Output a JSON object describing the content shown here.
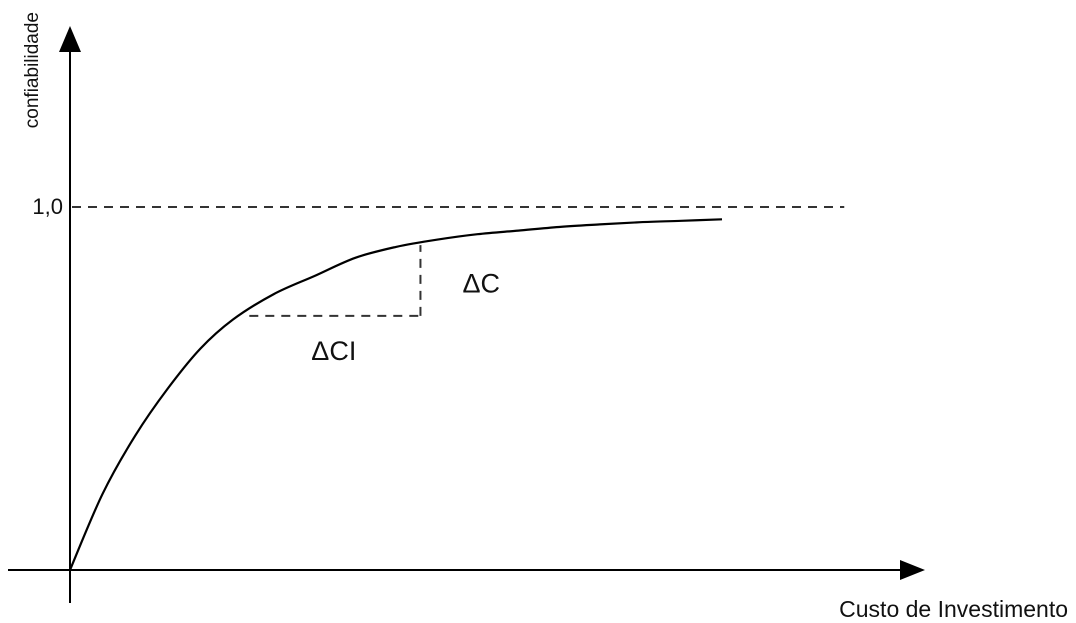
{
  "chart_data": {
    "type": "line",
    "title": "",
    "xlabel": "Custo de Investimento",
    "ylabel": "confiabilidade",
    "yticks": [
      {
        "value": 1.0,
        "label": "1,0"
      }
    ],
    "xlim": [
      0,
      1.0
    ],
    "ylim": [
      0,
      1.3
    ],
    "grid": false,
    "reference_line": {
      "y": 1.0,
      "style": "dashed",
      "x_to": 0.95
    },
    "series": [
      {
        "x": [
          0,
          0.04,
          0.08,
          0.12,
          0.16,
          0.2,
          0.25,
          0.3,
          0.35,
          0.4,
          0.45,
          0.5,
          0.55,
          0.6,
          0.65,
          0.7,
          0.75,
          0.8
        ],
        "y": [
          0,
          0.21,
          0.37,
          0.5,
          0.61,
          0.69,
          0.76,
          0.81,
          0.86,
          0.89,
          0.91,
          0.925,
          0.935,
          0.945,
          0.952,
          0.958,
          0.962,
          0.966
        ]
      }
    ],
    "annotations": [
      {
        "text": "ΔC",
        "x1": 0.22,
        "x2": 0.43,
        "y1": 0.7,
        "y2": 0.895,
        "role": "vertical-increment"
      },
      {
        "text": "ΔCI",
        "x1": 0.22,
        "x2": 0.43,
        "y1": 0.7,
        "y2": 0.895,
        "role": "horizontal-increment"
      }
    ]
  }
}
